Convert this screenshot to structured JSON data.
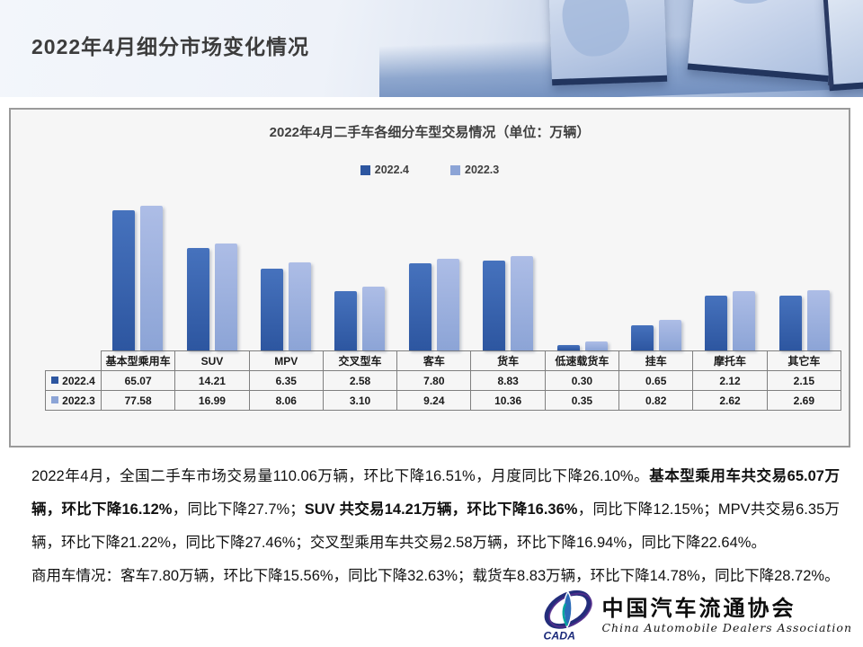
{
  "header": {
    "title": "2022年4月细分市场变化情况"
  },
  "chart_data": {
    "type": "bar",
    "title": "2022年4月二手车各细分车型交易情况（单位：万辆）",
    "unit": "万辆",
    "categories": [
      "基本型乘用车",
      "SUV",
      "MPV",
      "交叉型车",
      "客车",
      "货车",
      "低速载货车",
      "挂车",
      "摩托车",
      "其它车"
    ],
    "series": [
      {
        "name": "2022.4",
        "color": "#2d56a0",
        "color_top": "#4672bd",
        "values": [
          65.07,
          14.21,
          6.35,
          2.58,
          7.8,
          8.83,
          0.3,
          0.65,
          2.12,
          2.15
        ]
      },
      {
        "name": "2022.3",
        "color": "#8ca4d6",
        "color_top": "#adbde6",
        "values": [
          77.58,
          16.99,
          8.06,
          3.1,
          9.24,
          10.36,
          0.35,
          0.82,
          2.62,
          2.69
        ]
      }
    ],
    "yscale": "log",
    "grid": false,
    "legend_position": "top",
    "data_table_shown": true
  },
  "summary": {
    "paragraphs": [
      {
        "segments": [
          {
            "text": "2022年4月，全国二手车市场交易量110.06万辆，环比下降16.51%，月度同比下降26.10%。",
            "bold": false
          },
          {
            "text": "基本型乘用车共交易65.07万辆，环比下降16.12%",
            "bold": true
          },
          {
            "text": "，同比下降27.7%；",
            "bold": false
          },
          {
            "text": "SUV 共交易14.21万辆，环比下降16.36%",
            "bold": true
          },
          {
            "text": "，同比下降12.15%；MPV共交易6.35万辆，环比下降21.22%，同比下降27.46%；交叉型乘用车共交易2.58万辆，环比下降16.94%，同比下降22.64%。",
            "bold": false
          }
        ]
      },
      {
        "segments": [
          {
            "text": "商用车情况：客车7.80万辆，环比下降15.56%，同比下降32.63%；载货车8.83万辆，环比下降14.78%，同比下降28.72%。",
            "bold": false
          }
        ]
      }
    ]
  },
  "logo": {
    "cn": "中国汽车流通协会",
    "en": "China Automobile Dealers Association",
    "abbr": "CADA",
    "colors": {
      "primary": "#232d7b",
      "accent": "#00a79d",
      "purple": "#5b2d8e"
    }
  }
}
